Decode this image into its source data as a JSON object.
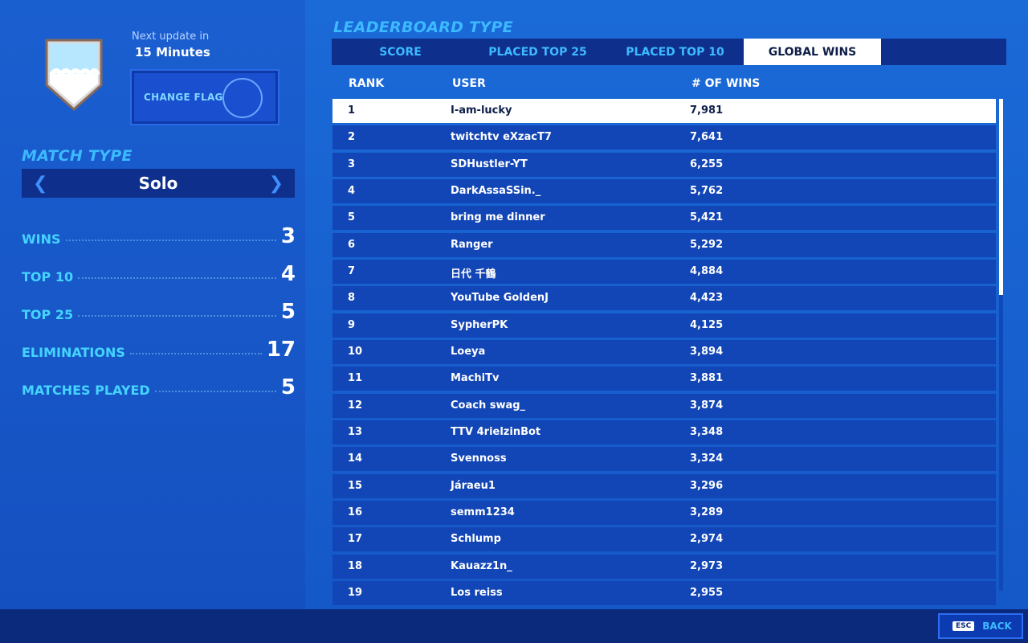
{
  "header": {
    "update_label": "Next update in",
    "update_value": "15 Minutes",
    "change_flag_label": "CHANGE FLAG"
  },
  "match": {
    "title": "MATCH TYPE",
    "value": "Solo"
  },
  "stats": [
    {
      "label": "WINS",
      "value": "3"
    },
    {
      "label": "TOP 10",
      "value": "4"
    },
    {
      "label": "TOP 25",
      "value": "5"
    },
    {
      "label": "ELIMINATIONS",
      "value": "17"
    },
    {
      "label": "MATCHES PLAYED",
      "value": "5"
    }
  ],
  "leaderboard": {
    "title": "LEADERBOARD TYPE",
    "tabs": [
      {
        "label": "SCORE"
      },
      {
        "label": "PLACED TOP 25"
      },
      {
        "label": "PLACED TOP 10"
      },
      {
        "label": "GLOBAL WINS"
      }
    ],
    "columns": {
      "rank": "RANK",
      "user": "USER",
      "wins": "# OF WINS"
    },
    "rows": [
      {
        "rank": "1",
        "user": "I-am-lucky",
        "wins": "7,981"
      },
      {
        "rank": "2",
        "user": "twitchtv eXzacT7",
        "wins": "7,641"
      },
      {
        "rank": "3",
        "user": "SDHustler-YT",
        "wins": "6,255"
      },
      {
        "rank": "4",
        "user": "DarkAssaSSin._",
        "wins": "5,762"
      },
      {
        "rank": "5",
        "user": "bring me dinner",
        "wins": "5,421"
      },
      {
        "rank": "6",
        "user": "Ranger",
        "wins": "5,292"
      },
      {
        "rank": "7",
        "user": "日代 千鶴",
        "wins": "4,884"
      },
      {
        "rank": "8",
        "user": "YouTube GoldenJ",
        "wins": "4,423"
      },
      {
        "rank": "9",
        "user": "SypherPK",
        "wins": "4,125"
      },
      {
        "rank": "10",
        "user": "Loeya",
        "wins": "3,894"
      },
      {
        "rank": "11",
        "user": "MachiTv",
        "wins": "3,881"
      },
      {
        "rank": "12",
        "user": "Coach swag_",
        "wins": "3,874"
      },
      {
        "rank": "13",
        "user": "TTV 4rielzinBot",
        "wins": "3,348"
      },
      {
        "rank": "14",
        "user": "Svennoss",
        "wins": "3,324"
      },
      {
        "rank": "15",
        "user": "Járaeu1",
        "wins": "3,296"
      },
      {
        "rank": "16",
        "user": "semm1234",
        "wins": "3,289"
      },
      {
        "rank": "17",
        "user": "Schlump",
        "wins": "2,974"
      },
      {
        "rank": "18",
        "user": "Kauazz1n_",
        "wins": "2,973"
      },
      {
        "rank": "19",
        "user": "Los reiss",
        "wins": "2,955"
      }
    ]
  },
  "footer": {
    "esc_key": "ESC",
    "back_label": "BACK"
  },
  "icons": {
    "flag": "wave-shield-icon",
    "left": "chevron-left-icon",
    "right": "chevron-right-icon"
  }
}
